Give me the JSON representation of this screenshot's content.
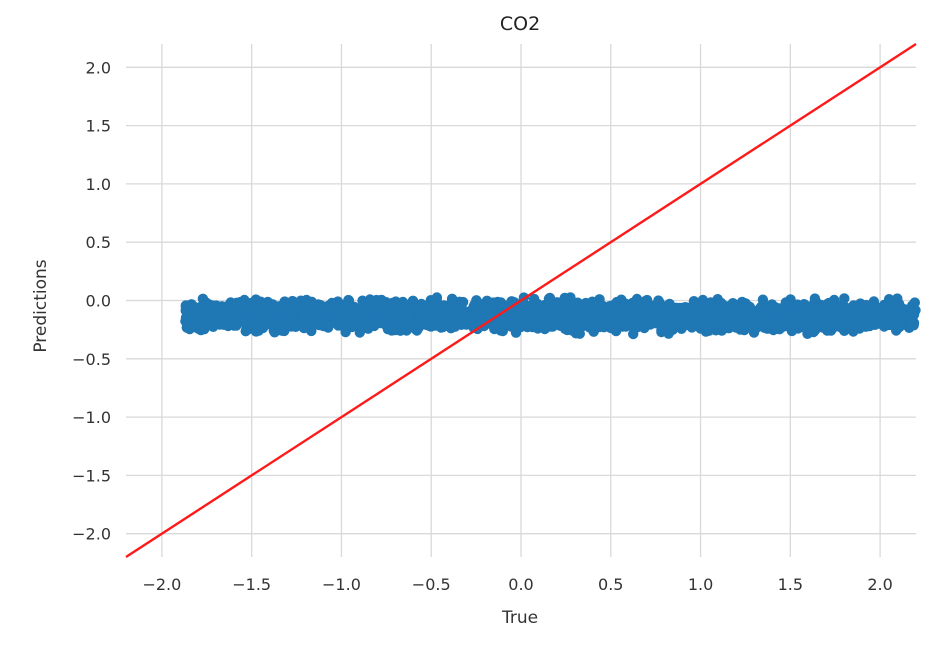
{
  "chart_data": {
    "type": "scatter",
    "title": "CO2",
    "xlabel": "True",
    "ylabel": "Predictions",
    "xlim": [
      -2.2,
      2.2
    ],
    "ylim": [
      -2.2,
      2.2
    ],
    "xticks": [
      -2.0,
      -1.5,
      -1.0,
      -0.5,
      0.0,
      0.5,
      1.0,
      1.5,
      2.0
    ],
    "yticks": [
      -2.0,
      -1.5,
      -1.0,
      -0.5,
      0.0,
      0.5,
      1.0,
      1.5,
      2.0
    ],
    "xtick_labels": [
      "−2.0",
      "−1.5",
      "−1.0",
      "−0.5",
      "0.0",
      "0.5",
      "1.0",
      "1.5",
      "2.0"
    ],
    "ytick_labels": [
      "−2.0",
      "−1.5",
      "−1.0",
      "−0.5",
      "0.0",
      "0.5",
      "1.0",
      "1.5",
      "2.0"
    ],
    "grid": true,
    "points": {
      "color": "#1f77b4",
      "x_range": [
        -1.87,
        2.2
      ],
      "y_center": -0.13,
      "y_spread": [
        -0.28,
        0.08
      ]
    },
    "reference_line": {
      "color": "#ff1a1a",
      "from": [
        -2.2,
        -2.2
      ],
      "to": [
        2.2,
        2.2
      ]
    }
  }
}
